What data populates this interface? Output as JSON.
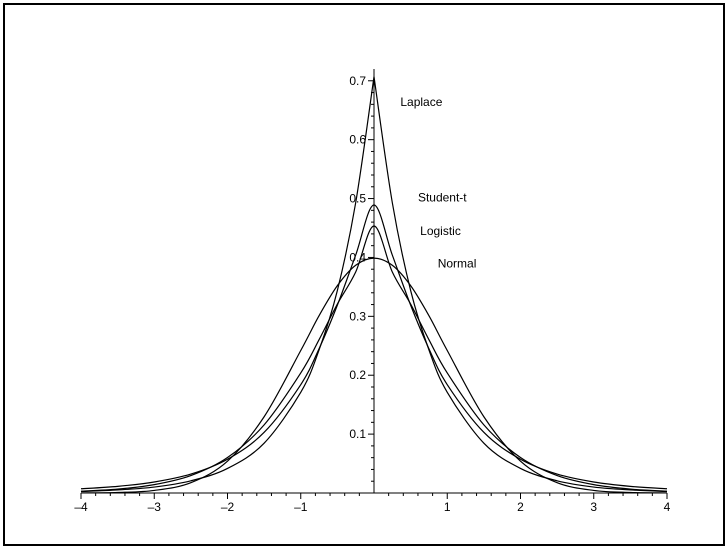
{
  "chart_data": {
    "type": "line",
    "title": "",
    "xlabel": "",
    "ylabel": "",
    "xlim": [
      -4,
      4
    ],
    "ylim": [
      0,
      0.72
    ],
    "grid": false,
    "legend": "none",
    "x_ticks": [
      {
        "value": -4,
        "label": "–4"
      },
      {
        "value": -3,
        "label": "–3"
      },
      {
        "value": -2,
        "label": "–2"
      },
      {
        "value": -1,
        "label": "–1"
      },
      {
        "value": 1,
        "label": "1"
      },
      {
        "value": 2,
        "label": "2"
      },
      {
        "value": 3,
        "label": "3"
      },
      {
        "value": 4,
        "label": "4"
      }
    ],
    "y_ticks": [
      {
        "value": 0.1,
        "label": "0.1"
      },
      {
        "value": 0.2,
        "label": "0.2"
      },
      {
        "value": 0.3,
        "label": "0.3"
      },
      {
        "value": 0.4,
        "label": "0.4"
      },
      {
        "value": 0.5,
        "label": "0.5"
      },
      {
        "value": 0.6,
        "label": "0.6"
      },
      {
        "value": 0.7,
        "label": "0.7"
      }
    ],
    "series": [
      {
        "name": "Laplace",
        "x": [
          -4,
          -3.5,
          -3,
          -2.5,
          -2,
          -1.5,
          -1,
          -0.75,
          -0.5,
          -0.25,
          0,
          0.25,
          0.5,
          0.75,
          1,
          1.5,
          2,
          2.5,
          3,
          3.5,
          4
        ],
        "y": [
          0.0025,
          0.0052,
          0.0101,
          0.0207,
          0.0417,
          0.0846,
          0.171,
          0.243,
          0.344,
          0.493,
          0.707,
          0.493,
          0.344,
          0.243,
          0.171,
          0.0846,
          0.0417,
          0.0207,
          0.0101,
          0.0052,
          0.0025
        ]
      },
      {
        "name": "Student-t",
        "x": [
          -4,
          -3.5,
          -3,
          -2.5,
          -2,
          -1.5,
          -1,
          -0.75,
          -0.5,
          -0.25,
          0,
          0.25,
          0.5,
          0.75,
          1,
          1.5,
          2,
          2.5,
          3,
          3.5,
          4
        ],
        "y": [
          0.0072,
          0.0113,
          0.0187,
          0.0321,
          0.0573,
          0.103,
          0.184,
          0.245,
          0.319,
          0.404,
          0.489,
          0.404,
          0.319,
          0.245,
          0.184,
          0.103,
          0.0573,
          0.0321,
          0.0187,
          0.0113,
          0.0072
        ]
      },
      {
        "name": "Logistic",
        "x": [
          -4,
          -3.5,
          -3,
          -2.5,
          -2,
          -1.5,
          -1,
          -0.75,
          -0.5,
          -0.25,
          0,
          0.25,
          0.5,
          0.75,
          1,
          1.5,
          2,
          2.5,
          3,
          3.5,
          4
        ],
        "y": [
          0.0031,
          0.0066,
          0.0142,
          0.0296,
          0.0602,
          0.1157,
          0.2038,
          0.2603,
          0.3209,
          0.3753,
          0.4534,
          0.3753,
          0.3209,
          0.2603,
          0.2038,
          0.1157,
          0.0602,
          0.0296,
          0.0142,
          0.0066,
          0.0031
        ]
      },
      {
        "name": "Normal",
        "x": [
          -4,
          -3.5,
          -3,
          -2.5,
          -2,
          -1.5,
          -1,
          -0.75,
          -0.5,
          -0.25,
          0,
          0.25,
          0.5,
          0.75,
          1,
          1.5,
          2,
          2.5,
          3,
          3.5,
          4
        ],
        "y": [
          0.0001,
          0.0009,
          0.0044,
          0.0175,
          0.054,
          0.1295,
          0.242,
          0.3011,
          0.3521,
          0.3867,
          0.3989,
          0.3867,
          0.3521,
          0.3011,
          0.242,
          0.1295,
          0.054,
          0.0175,
          0.0044,
          0.0009,
          0.0001
        ]
      }
    ],
    "annotations": [
      {
        "text": "Laplace",
        "x": 0.36,
        "y": 0.657
      },
      {
        "text": "Student-t",
        "x": 0.6,
        "y": 0.495
      },
      {
        "text": "Logistic",
        "x": 0.63,
        "y": 0.438
      },
      {
        "text": "Normal",
        "x": 0.87,
        "y": 0.383
      }
    ]
  }
}
